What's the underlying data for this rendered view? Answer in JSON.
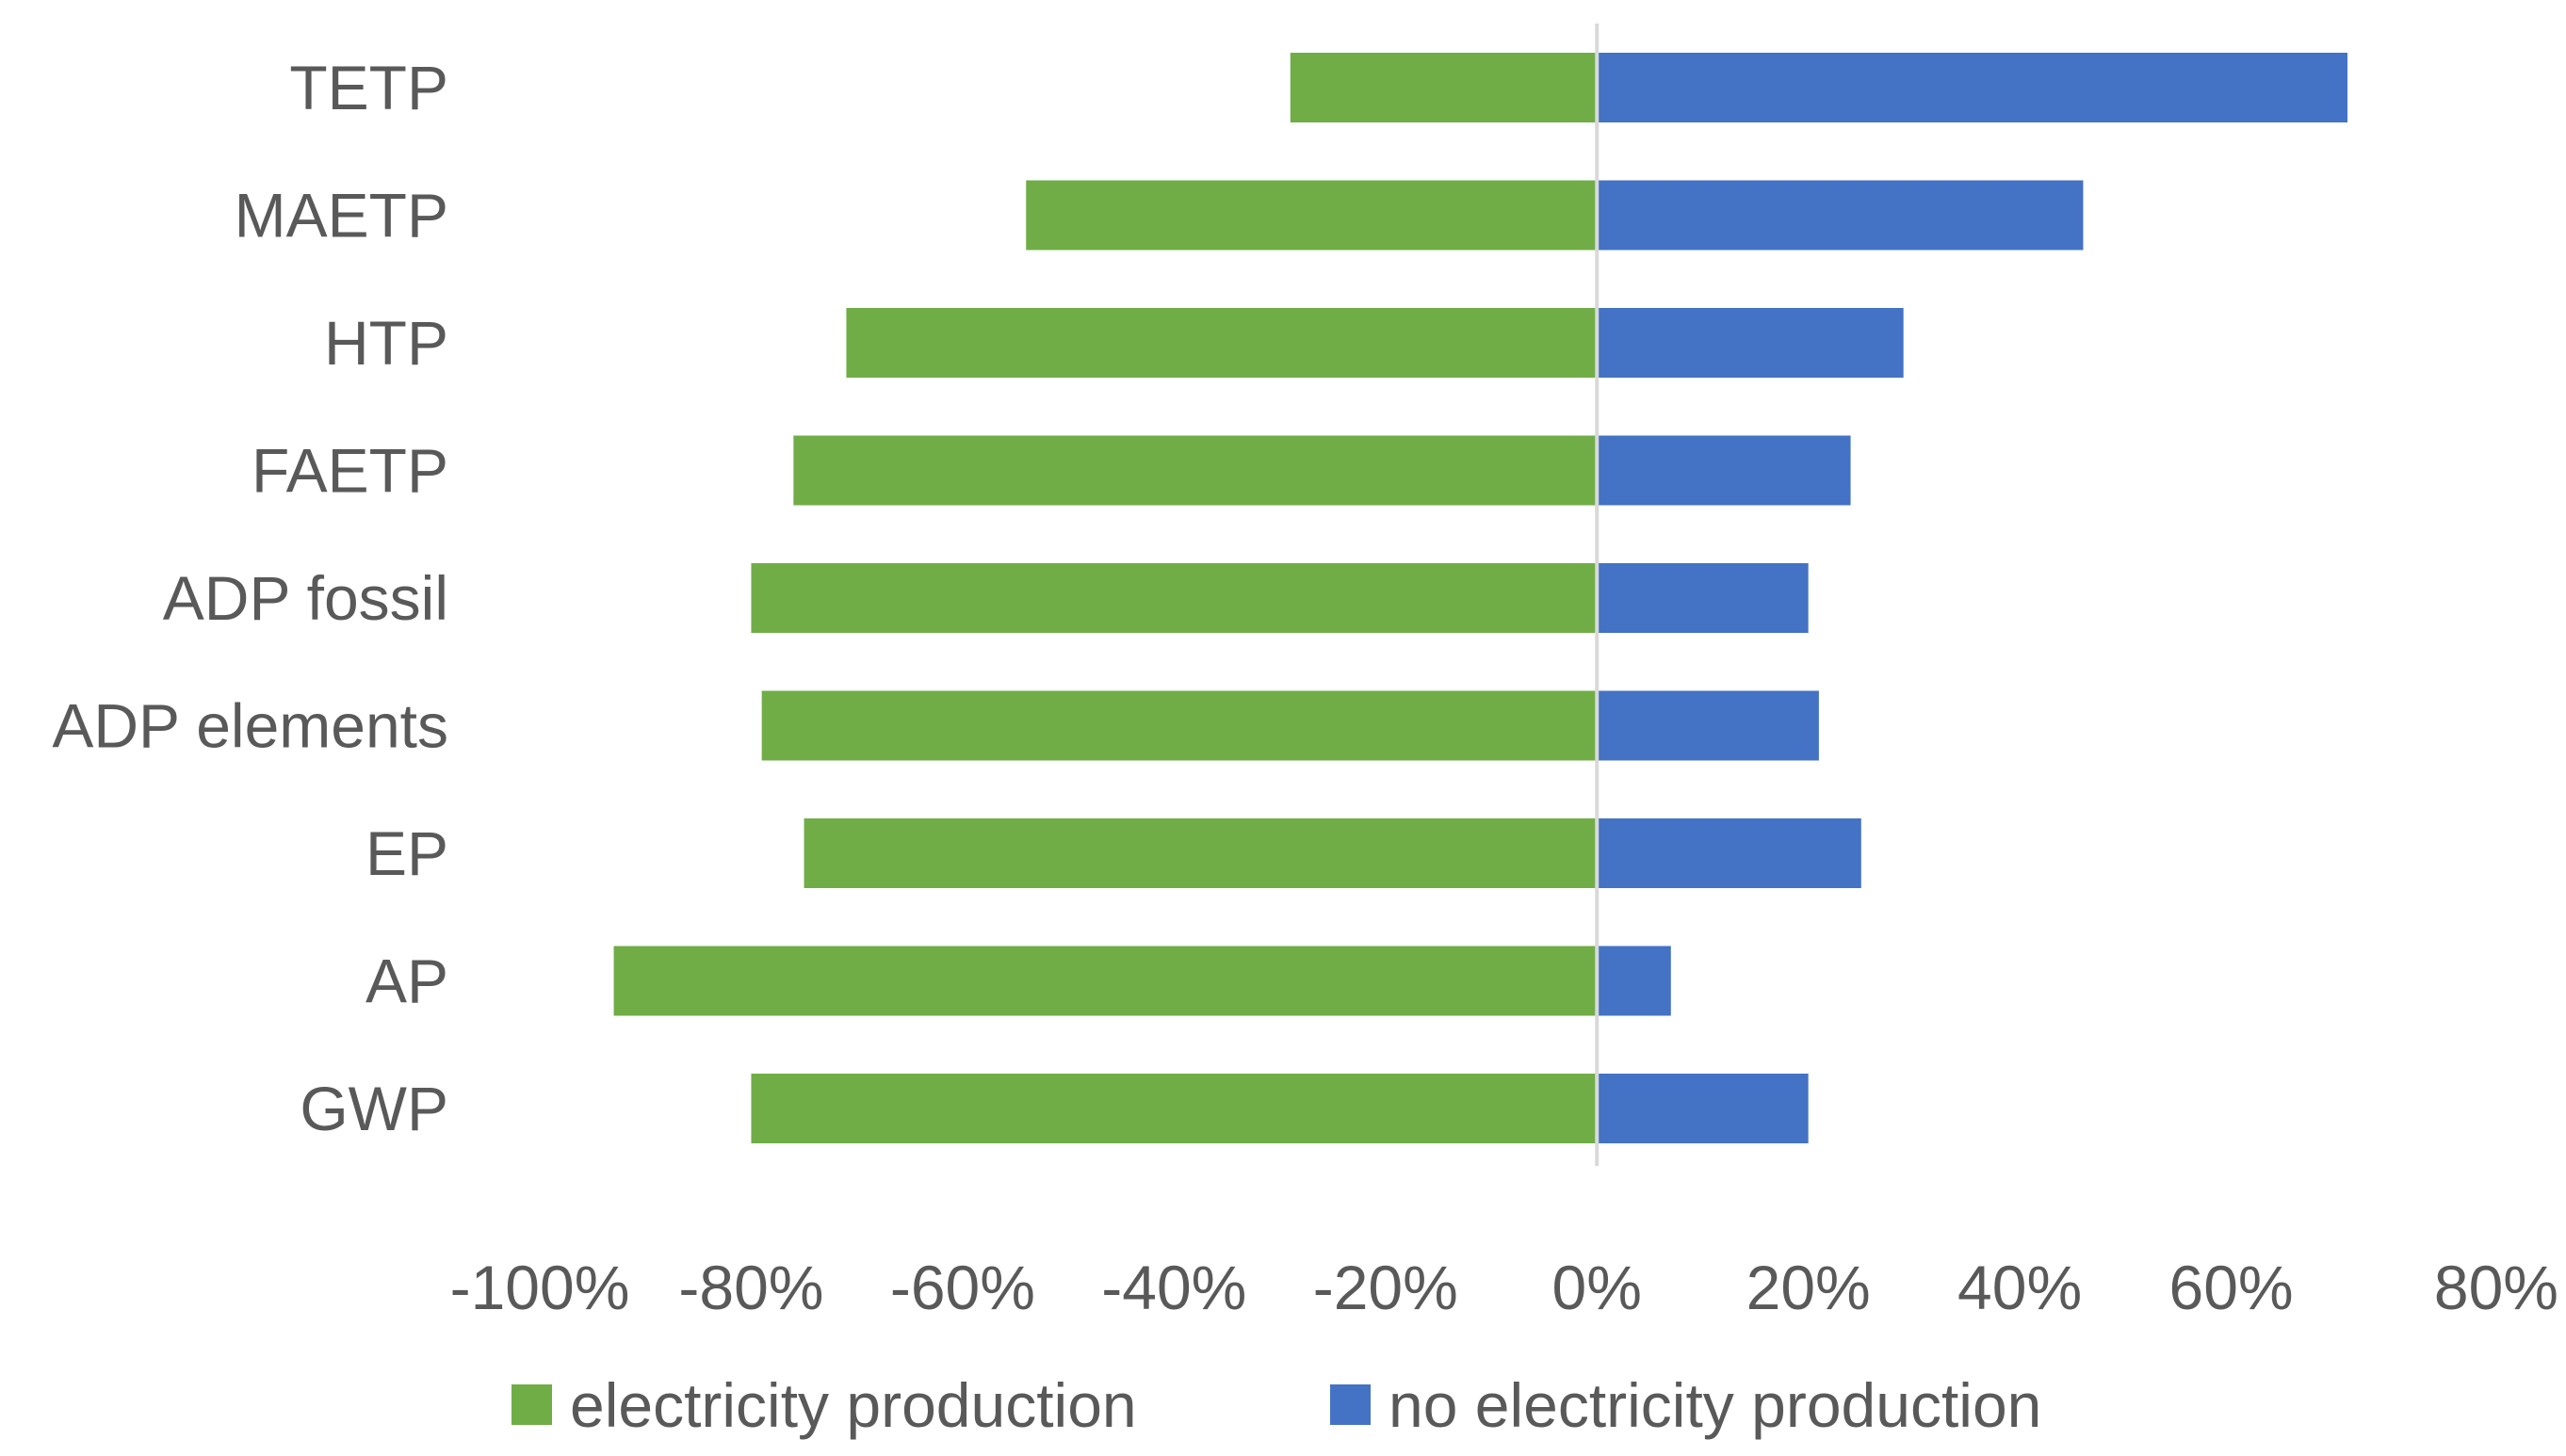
{
  "chart_data": {
    "type": "bar",
    "orientation": "horizontal",
    "stacked": true,
    "title": "",
    "xlabel": "",
    "ylabel": "",
    "xlim": [
      -1.0,
      0.8
    ],
    "categories": [
      "TETP",
      "MAETP",
      "HTP",
      "FAETP",
      "ADP fossil",
      "ADP elements",
      "EP",
      "AP",
      "GWP"
    ],
    "series": [
      {
        "name": "electricity production",
        "color": "#70AD47",
        "values": [
          -0.29,
          -0.54,
          -0.71,
          -0.76,
          -0.8,
          -0.79,
          -0.75,
          -0.93,
          -0.8
        ]
      },
      {
        "name": "no electricity production",
        "color": "#4472C4",
        "values": [
          0.71,
          0.46,
          0.29,
          0.24,
          0.2,
          0.21,
          0.25,
          0.07,
          0.2
        ]
      }
    ],
    "ticks": [
      -1.0,
      -0.8,
      -0.6,
      -0.4,
      -0.2,
      0.0,
      0.2,
      0.4,
      0.6,
      0.8
    ],
    "tick_labels": [
      "-100%",
      "-80%",
      "-60%",
      "-40%",
      "-20%",
      "0%",
      "20%",
      "40%",
      "60%",
      "80%"
    ],
    "legend_position": "bottom",
    "zero_line_color": "#D9D9D9",
    "grid": false
  }
}
